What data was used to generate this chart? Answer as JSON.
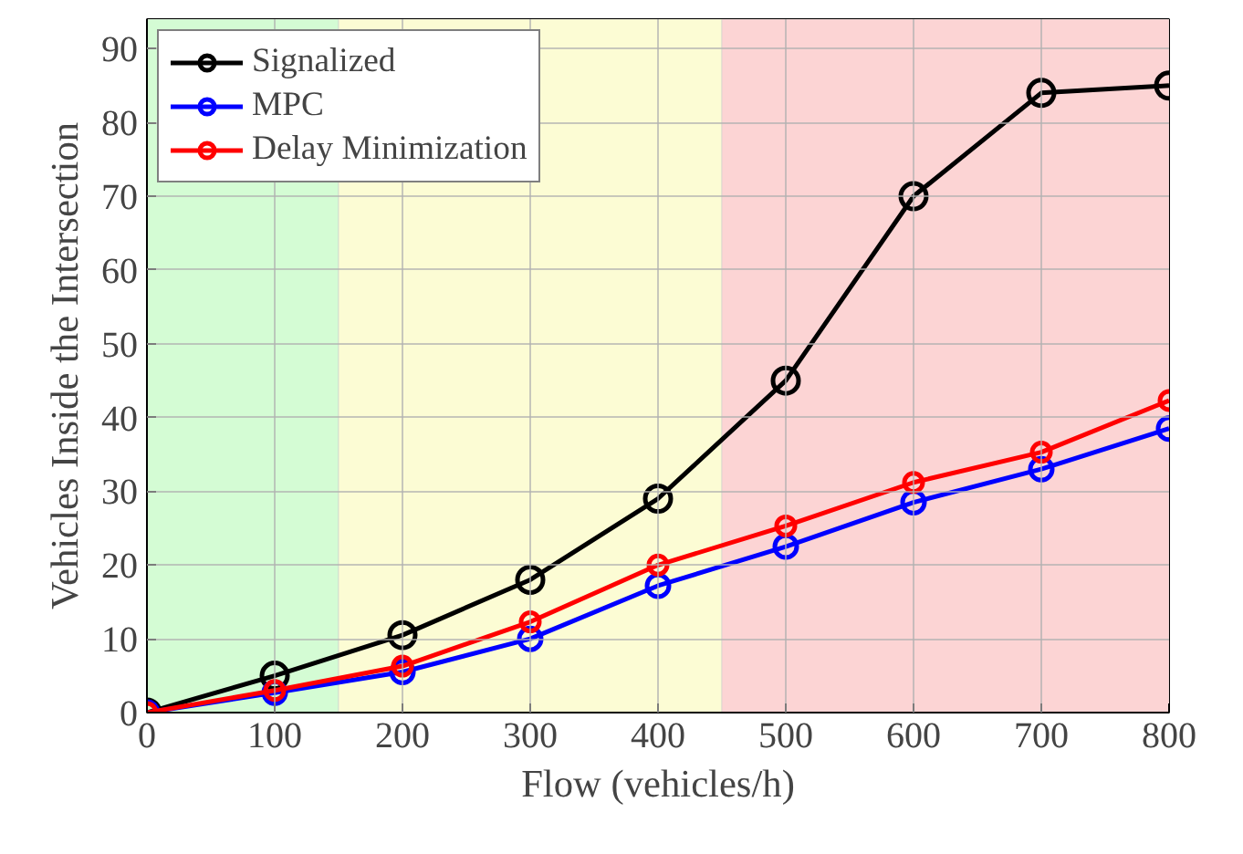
{
  "chart_data": {
    "type": "line",
    "xlabel": "Flow (vehicles/h)",
    "ylabel": "Vehicles Inside the Intersection",
    "x": [
      0,
      100,
      200,
      300,
      400,
      500,
      600,
      700,
      800
    ],
    "series": [
      {
        "name": "Signalized",
        "color": "#000000",
        "values": [
          0,
          5,
          10.5,
          18,
          29,
          45,
          70,
          84,
          85
        ]
      },
      {
        "name": "MPC",
        "color": "#0000ff",
        "values": [
          0,
          2.7,
          5.5,
          10,
          17.2,
          22.5,
          28.5,
          33,
          38.5
        ]
      },
      {
        "name": "Delay Minimization",
        "color": "#ff0000",
        "values": [
          0,
          3,
          6.3,
          12.3,
          20,
          25.3,
          31.2,
          35.3,
          42.3
        ]
      }
    ],
    "xlim": [
      0,
      800
    ],
    "ylim": [
      0,
      94
    ],
    "xticks": [
      0,
      100,
      200,
      300,
      400,
      500,
      600,
      700,
      800
    ],
    "yticks": [
      0,
      10,
      20,
      30,
      40,
      50,
      60,
      70,
      80,
      90
    ],
    "bands": [
      {
        "axis": "x",
        "from": 0,
        "to": 150,
        "color": "#d4fcd4"
      },
      {
        "axis": "x",
        "from": 150,
        "to": 450,
        "color": "#fcfcd4"
      },
      {
        "axis": "x",
        "from": 450,
        "to": 800,
        "color": "#fcd4d4"
      }
    ],
    "grid": true,
    "legend": "top left",
    "marker": "circle",
    "line_style": "solid"
  }
}
